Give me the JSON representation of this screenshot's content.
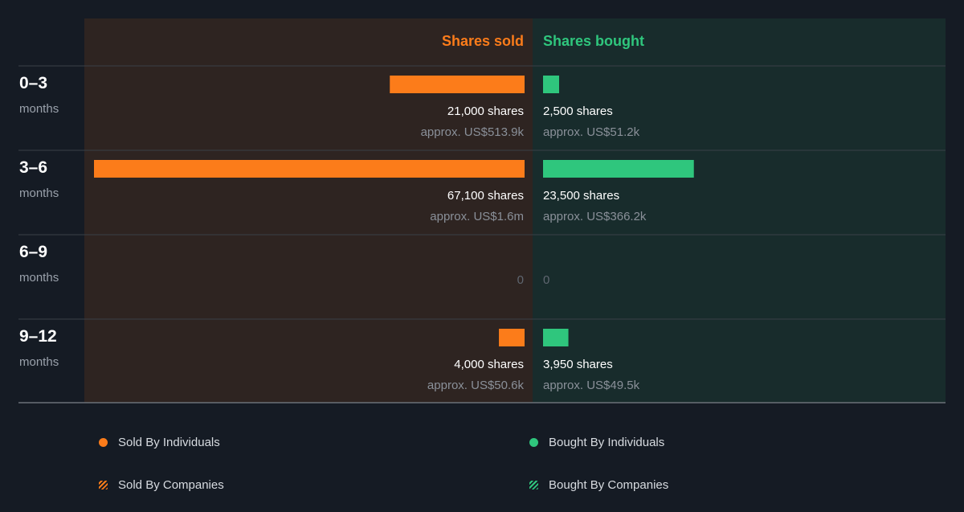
{
  "chart_data": {
    "type": "bar",
    "sold_header": "Shares sold",
    "bought_header": "Shares bought",
    "colors": {
      "sold": "#fc7c1a",
      "bought": "#2fc67d",
      "sold_bg": "#2e2421",
      "bought_bg": "#182c2c"
    },
    "periods": [
      {
        "label": "0–3",
        "unit": "months",
        "sold": 21000,
        "sold_text": "21,000 shares",
        "sold_value": "approx. US$513.9k",
        "bought": 2500,
        "bought_text": "2,500 shares",
        "bought_value": "approx. US$51.2k"
      },
      {
        "label": "3–6",
        "unit": "months",
        "sold": 67100,
        "sold_text": "67,100 shares",
        "sold_value": "approx. US$1.6m",
        "bought": 23500,
        "bought_text": "23,500 shares",
        "bought_value": "approx. US$366.2k"
      },
      {
        "label": "6–9",
        "unit": "months",
        "sold": 0,
        "sold_text": "0",
        "sold_value": "",
        "bought": 0,
        "bought_text": "0",
        "bought_value": ""
      },
      {
        "label": "9–12",
        "unit": "months",
        "sold": 4000,
        "sold_text": "4,000 shares",
        "sold_value": "approx. US$50.6k",
        "bought": 3950,
        "bought_text": "3,950 shares",
        "bought_value": "approx. US$49.5k"
      }
    ],
    "max_shares": 67100
  },
  "legend": {
    "sold_individuals": "Sold By Individuals",
    "bought_individuals": "Bought By Individuals",
    "sold_companies": "Sold By Companies",
    "bought_companies": "Bought By Companies"
  }
}
